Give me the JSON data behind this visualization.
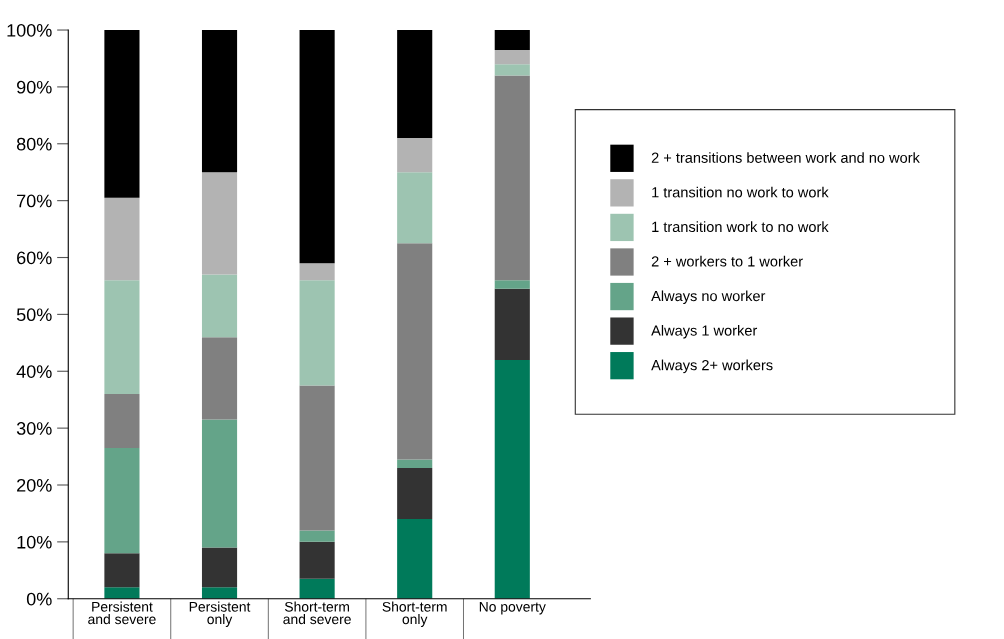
{
  "chart_data": {
    "type": "bar",
    "stacked": true,
    "legend": "right",
    "grid": false,
    "categories": [
      "Persistent\nand severe",
      "Persistent\nonly",
      "Short-term\nand severe",
      "Short-term\nonly",
      "No poverty"
    ],
    "ylim": [
      0,
      100
    ],
    "yticks": [
      {
        "value": 0,
        "label": "0%"
      },
      {
        "value": 10,
        "label": "10%"
      },
      {
        "value": 20,
        "label": "20%"
      },
      {
        "value": 30,
        "label": "30%"
      },
      {
        "value": 40,
        "label": "40%"
      },
      {
        "value": 50,
        "label": "50%"
      },
      {
        "value": 60,
        "label": "60%"
      },
      {
        "value": 70,
        "label": "70%"
      },
      {
        "value": 80,
        "label": "80%"
      },
      {
        "value": 90,
        "label": "90%"
      },
      {
        "value": 100,
        "label": "100%"
      }
    ],
    "series": [
      {
        "name": "Always 2+ workers",
        "color": "#007a5a",
        "values": [
          2,
          2,
          3.5,
          14,
          42
        ]
      },
      {
        "name": "Always 1 worker",
        "color": "#333333",
        "values": [
          6,
          7,
          6.5,
          9,
          12.5
        ]
      },
      {
        "name": "Always no worker",
        "color": "#64a489",
        "values": [
          18.5,
          22.5,
          2,
          1.5,
          1.5
        ]
      },
      {
        "name": "2 + workers to 1 worker",
        "color": "#808080",
        "values": [
          9.5,
          14.5,
          25.5,
          38,
          36
        ]
      },
      {
        "name": "1 transition work to no work",
        "color": "#9dc4b1",
        "values": [
          20,
          11,
          18.5,
          12.5,
          2
        ]
      },
      {
        "name": "1 transition no work to work",
        "color": "#b3b3b3",
        "values": [
          14.5,
          18,
          3,
          6,
          2.5
        ]
      },
      {
        "name": "2 + transitions between work and no work",
        "color": "#000000",
        "values": [
          29.5,
          25,
          41,
          19,
          3.5
        ]
      }
    ]
  }
}
